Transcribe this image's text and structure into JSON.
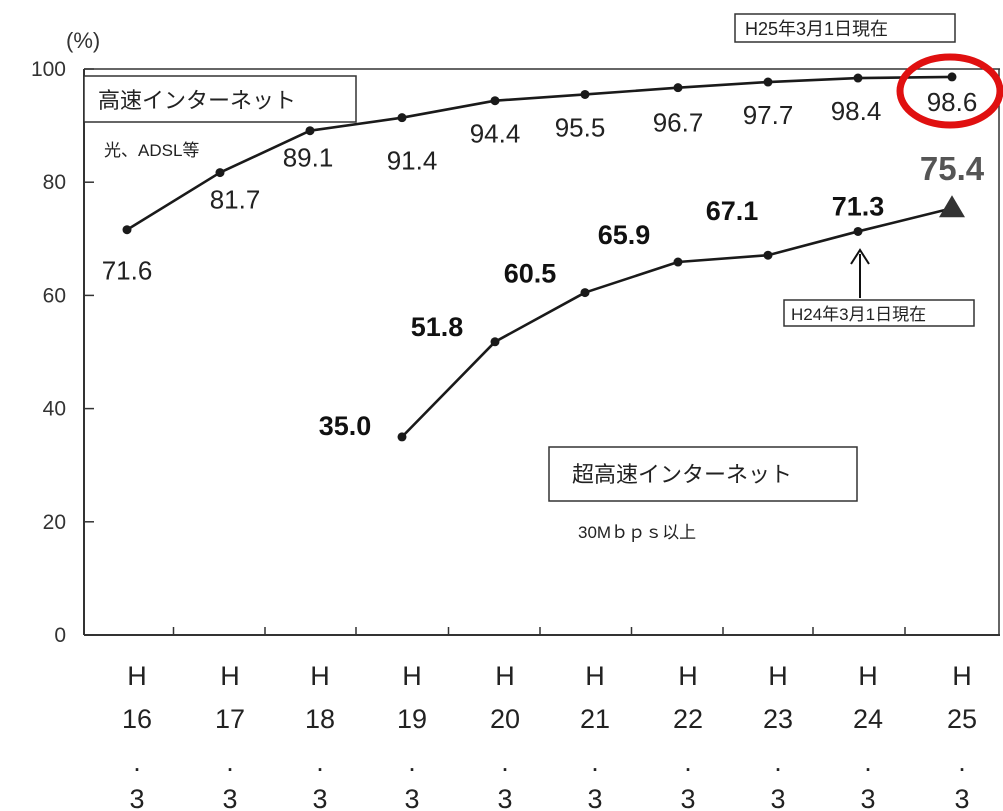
{
  "chart_data": {
    "type": "line",
    "unit_label": "(%)",
    "categories": [
      {
        "era": "H",
        "year": "16",
        "sep": ".",
        "month": "3"
      },
      {
        "era": "H",
        "year": "17",
        "sep": ".",
        "month": "3"
      },
      {
        "era": "H",
        "year": "18",
        "sep": ".",
        "month": "3"
      },
      {
        "era": "H",
        "year": "19",
        "sep": ".",
        "month": "3"
      },
      {
        "era": "H",
        "year": "20",
        "sep": ".",
        "month": "3"
      },
      {
        "era": "H",
        "year": "21",
        "sep": ".",
        "month": "3"
      },
      {
        "era": "H",
        "year": "22",
        "sep": ".",
        "month": "3"
      },
      {
        "era": "H",
        "year": "23",
        "sep": ".",
        "month": "3"
      },
      {
        "era": "H",
        "year": "24",
        "sep": ".",
        "month": "3"
      },
      {
        "era": "H",
        "year": "25",
        "sep": ".",
        "month": "3"
      }
    ],
    "ylim": [
      0,
      100
    ],
    "yticks": [
      0,
      20,
      40,
      60,
      80,
      100
    ],
    "series": [
      {
        "name": "高速インターネット",
        "note": "光、ADSL等",
        "values": [
          71.6,
          81.7,
          89.1,
          91.4,
          94.4,
          95.5,
          96.7,
          97.7,
          98.4,
          98.6
        ],
        "labels": [
          "71.6",
          "81.7",
          "89.1",
          "91.4",
          "94.4",
          "95.5",
          "96.7",
          "97.7",
          "98.4",
          "98.6"
        ]
      },
      {
        "name": "超高速インターネット",
        "note": "30Mｂｐｓ以上",
        "values": [
          null,
          null,
          null,
          35.0,
          51.8,
          60.5,
          65.9,
          67.1,
          71.3,
          75.4
        ],
        "labels": [
          null,
          null,
          null,
          "35.0",
          "51.8",
          "60.5",
          "65.9",
          "67.1",
          "71.3",
          "75.4"
        ]
      }
    ],
    "annotations": {
      "top_box": "H25年3月1日現在",
      "inner_box": "H24年3月1日現在"
    },
    "colors": {
      "line": "#1a1a1a",
      "highlight_circle": "#e01010",
      "axis": "#333333"
    },
    "grid": false
  }
}
